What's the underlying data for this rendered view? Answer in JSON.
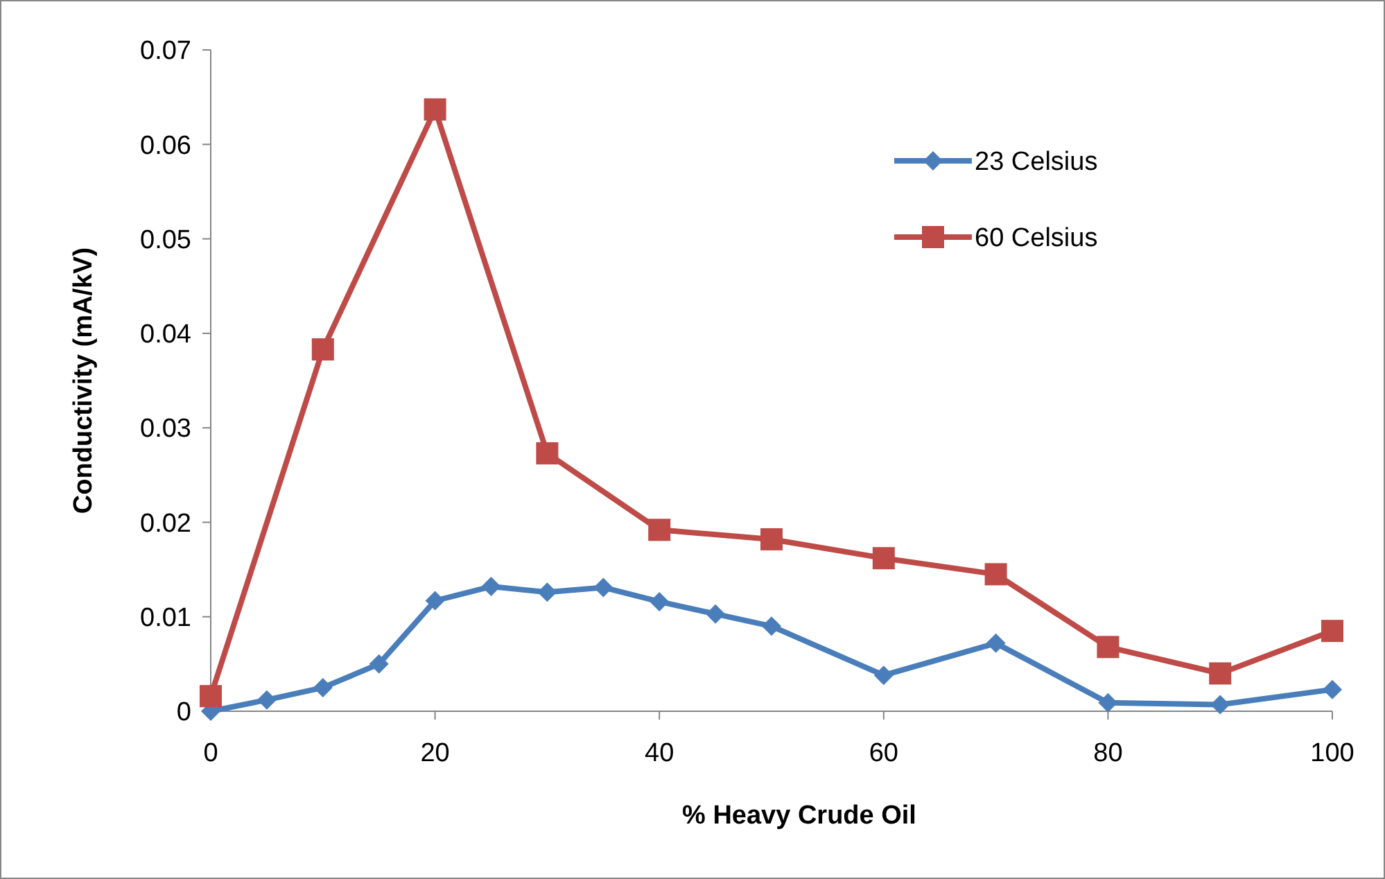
{
  "chart_data": {
    "type": "line",
    "xlabel": "% Heavy Crude Oil",
    "ylabel": "Conductivity (mA/kV)",
    "xlim": [
      0,
      100
    ],
    "xticks": [
      0,
      20,
      40,
      60,
      80,
      100
    ],
    "ylim": [
      0,
      0.07
    ],
    "yticks": [
      0,
      0.01,
      0.02,
      0.03,
      0.04,
      0.05,
      0.06,
      0.07
    ],
    "grid": false,
    "legend": "top right",
    "series": [
      {
        "name": "23 Celsius",
        "color": "#4a7ebb",
        "marker": "diamond",
        "x": [
          0,
          5,
          10,
          15,
          20,
          25,
          30,
          35,
          40,
          45,
          50,
          60,
          70,
          80,
          90,
          100
        ],
        "values": [
          0,
          0.0012,
          0.0025,
          0.005,
          0.0117,
          0.0132,
          0.0126,
          0.0131,
          0.0116,
          0.0103,
          0.009,
          0.0038,
          0.0072,
          0.0009,
          0.0007,
          0.0023
        ]
      },
      {
        "name": "60 Celsius",
        "color": "#be4b48",
        "marker": "square",
        "x": [
          0,
          10,
          20,
          30,
          40,
          50,
          60,
          70,
          80,
          90,
          100
        ],
        "values": [
          0.0016,
          0.0383,
          0.0637,
          0.0273,
          0.0192,
          0.0182,
          0.0162,
          0.0145,
          0.0068,
          0.004,
          0.0085
        ]
      }
    ]
  }
}
